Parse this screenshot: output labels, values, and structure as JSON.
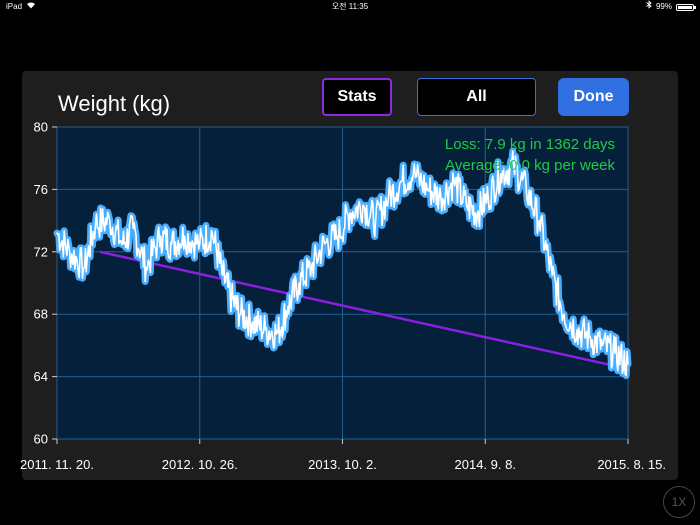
{
  "status_bar": {
    "device": "iPad",
    "time": "오전 11:35",
    "battery": "99%",
    "battery_level": 0.99
  },
  "header": {
    "title": "Weight (kg)",
    "stats_label": "Stats",
    "all_label": "All",
    "done_label": "Done"
  },
  "zoom_label": "1X",
  "colors": {
    "panel": "#1e1e1e",
    "plot_bg": "#05203a",
    "grid": "#1e5f91",
    "weight_line": "#4aaeff",
    "trend_line": "#8a1fe0",
    "info_text": "#23c84a",
    "stats_border": "#8a2be2",
    "all_border": "#3a6fd8",
    "done_bg": "#2f6fe0"
  },
  "chart_data": {
    "type": "line",
    "title": "Weight (kg)",
    "ylim": [
      60,
      80
    ],
    "y_ticks": [
      "80",
      "76",
      "72",
      "68",
      "64",
      "60"
    ],
    "y_tick_values": [
      80,
      76,
      72,
      68,
      64,
      60
    ],
    "x_ticks": [
      "2011. 11. 20.",
      "2012. 10. 26.",
      "2013. 10. 2.",
      "2014. 9. 8.",
      "2015. 8. 15."
    ],
    "x_tick_dates": [
      "2011-11-20",
      "2012-10-26",
      "2013-10-02",
      "2014-09-08",
      "2015-08-15"
    ],
    "grid": true,
    "annotations": [
      "Loss: 7.9 kg in 1362 days",
      "Average: 0.0 kg per week"
    ],
    "series": [
      {
        "x": [
          "2011-11-20",
          "2011-12-20",
          "2012-01-25",
          "2012-02-20",
          "2012-03-25",
          "2012-04-25",
          "2012-05-20",
          "2012-06-20",
          "2012-07-25",
          "2012-08-20",
          "2012-09-20",
          "2012-10-26",
          "2012-11-25",
          "2012-12-20",
          "2013-01-10",
          "2013-02-01",
          "2013-03-01",
          "2013-04-01",
          "2013-05-01",
          "2013-05-25",
          "2013-06-20",
          "2013-07-20",
          "2013-08-20",
          "2013-09-20",
          "2013-10-20",
          "2013-11-20",
          "2013-12-20",
          "2014-01-20",
          "2014-02-20",
          "2014-03-20",
          "2014-04-25",
          "2014-05-25",
          "2014-06-25",
          "2014-07-25",
          "2014-08-20",
          "2014-09-15",
          "2014-10-15",
          "2014-11-15",
          "2014-12-15",
          "2015-01-15",
          "2015-02-15",
          "2015-03-15",
          "2015-04-15",
          "2015-05-15",
          "2015-06-15",
          "2015-07-15",
          "2015-08-15"
        ],
        "values": [
          73.2,
          72.0,
          71.0,
          73.8,
          74.0,
          72.5,
          73.5,
          71.0,
          73.0,
          72.5,
          73.0,
          72.5,
          73.2,
          70.5,
          69.0,
          68.0,
          67.5,
          67.0,
          66.8,
          68.5,
          70.0,
          71.0,
          72.5,
          73.0,
          74.5,
          75.0,
          74.0,
          75.5,
          76.5,
          77.0,
          76.0,
          75.5,
          76.5,
          75.0,
          74.5,
          75.5,
          77.0,
          77.5,
          76.0,
          74.0,
          70.5,
          68.0,
          67.0,
          66.5,
          66.0,
          65.5,
          64.8
        ]
      },
      {
        "x": [
          "2012-03-01",
          "2015-08-15"
        ],
        "values": [
          72.0,
          64.5
        ]
      }
    ]
  }
}
